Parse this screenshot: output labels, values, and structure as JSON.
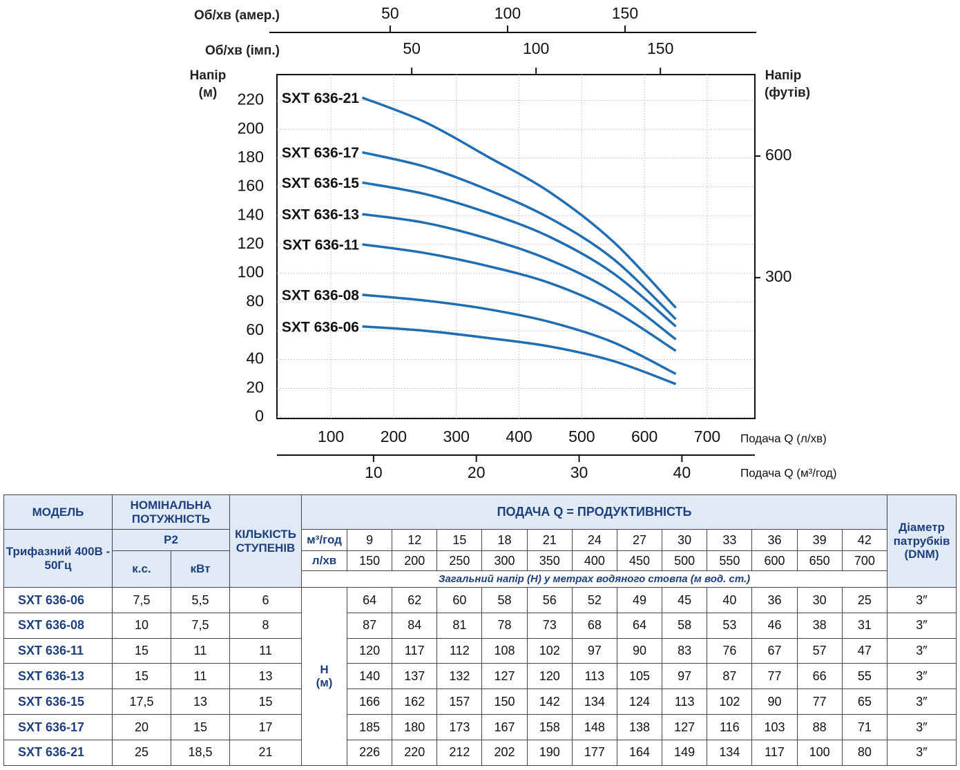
{
  "chart_data": {
    "type": "line",
    "ylabel": [
      "Напір",
      "(м)"
    ],
    "y2label": [
      "Напір",
      "(футів)"
    ],
    "xlabel": "Подача Q (л/хв)",
    "x": [
      150,
      250,
      350,
      450,
      550,
      650
    ],
    "xlim": [
      14,
      776
    ],
    "xticks": [
      100,
      200,
      300,
      400,
      500,
      600,
      700
    ],
    "ylim": [
      0,
      238
    ],
    "yticks": [
      0,
      20,
      40,
      60,
      80,
      100,
      120,
      140,
      160,
      180,
      200,
      220
    ],
    "y2lim": [
      -44,
      801
    ],
    "y2ticks": [
      300,
      600
    ],
    "grid": true,
    "extra_x_axes": [
      {
        "label": "Подача Q (м³/год)",
        "position": "bottom",
        "lim": [
          0.6,
          47.1
        ],
        "ticks": [
          10,
          20,
          30,
          40
        ]
      },
      {
        "label": "Об/хв (імп.)",
        "position": "top",
        "lim": [
          -4.2,
          188
        ],
        "ticks": [
          50,
          100,
          150
        ]
      },
      {
        "label": "Об/хв (амер.)",
        "position": "top",
        "lim": [
          1.8,
          205.3
        ],
        "ticks": [
          50,
          100,
          150
        ]
      }
    ],
    "series": [
      {
        "name": "SXT 636-21",
        "color": "#1f6db3",
        "values": [
          222,
          205,
          181,
          156,
          122,
          76
        ]
      },
      {
        "name": "SXT 636-17",
        "color": "#1f6db3",
        "values": [
          184,
          174,
          158,
          138,
          110,
          68
        ]
      },
      {
        "name": "SXT 636-15",
        "color": "#1f6db3",
        "values": [
          163,
          155,
          142,
          125,
          100,
          63
        ]
      },
      {
        "name": "SXT 636-13",
        "color": "#1f6db3",
        "values": [
          141,
          135,
          124,
          109,
          87,
          54
        ]
      },
      {
        "name": "SXT 636-11",
        "color": "#1f6db3",
        "values": [
          120,
          114,
          105,
          93,
          74,
          46
        ]
      },
      {
        "name": "SXT 636-08",
        "color": "#1f6db3",
        "values": [
          85,
          81,
          75,
          66,
          52,
          30
        ]
      },
      {
        "name": "SXT 636-06",
        "color": "#1f6db3",
        "values": [
          63,
          60,
          55,
          49,
          39,
          23
        ]
      }
    ]
  },
  "table": {
    "header": {
      "model": "МОДЕЛЬ",
      "power": "НОМІНАЛЬНА ПОТУЖНІСТЬ",
      "stages": "КІЛЬКІСТЬ СТУПЕНІВ",
      "flow": "ПОДАЧА Q = ПРОДУКТИВНІСТЬ",
      "dnm": "Діаметр патрубків (DNM)",
      "supply": "Трифазний 400В - 50Гц",
      "p2": "P2",
      "hp": "к.с.",
      "kw": "кВт",
      "unit_m3": "м³/год",
      "unit_l": "л/хв",
      "head_note": "Загальний напір (Н) у метрах водяного стовпа (м вод. ст.)",
      "h": "Н (м)"
    },
    "flow_m3h": [
      9,
      12,
      15,
      18,
      21,
      24,
      27,
      30,
      33,
      36,
      39,
      42
    ],
    "flow_lmin": [
      150,
      200,
      250,
      300,
      350,
      400,
      450,
      500,
      550,
      600,
      650,
      700
    ],
    "rows": [
      {
        "model": "SXT 636-06",
        "hp": "7,5",
        "kw": "5,5",
        "stages": 6,
        "head": [
          64,
          62,
          60,
          58,
          56,
          52,
          49,
          45,
          40,
          36,
          30,
          25
        ],
        "dnm": "3″"
      },
      {
        "model": "SXT 636-08",
        "hp": "10",
        "kw": "7,5",
        "stages": 8,
        "head": [
          87,
          84,
          81,
          78,
          73,
          68,
          64,
          58,
          53,
          46,
          38,
          31
        ],
        "dnm": "3″"
      },
      {
        "model": "SXT 636-11",
        "hp": "15",
        "kw": "11",
        "stages": 11,
        "head": [
          120,
          117,
          112,
          108,
          102,
          97,
          90,
          83,
          76,
          67,
          57,
          47
        ],
        "dnm": "3″"
      },
      {
        "model": "SXT 636-13",
        "hp": "15",
        "kw": "11",
        "stages": 13,
        "head": [
          140,
          137,
          132,
          127,
          120,
          113,
          105,
          97,
          87,
          77,
          66,
          55
        ],
        "dnm": "3″"
      },
      {
        "model": "SXT 636-15",
        "hp": "17,5",
        "kw": "13",
        "stages": 15,
        "head": [
          166,
          162,
          157,
          150,
          142,
          134,
          124,
          113,
          102,
          90,
          77,
          65
        ],
        "dnm": "3″"
      },
      {
        "model": "SXT 636-17",
        "hp": "20",
        "kw": "15",
        "stages": 17,
        "head": [
          185,
          180,
          173,
          167,
          158,
          148,
          138,
          127,
          116,
          103,
          88,
          71
        ],
        "dnm": "3″"
      },
      {
        "model": "SXT 636-21",
        "hp": "25",
        "kw": "18,5",
        "stages": 21,
        "head": [
          226,
          220,
          212,
          202,
          190,
          177,
          164,
          149,
          134,
          117,
          100,
          80
        ],
        "dnm": "3″"
      }
    ]
  }
}
